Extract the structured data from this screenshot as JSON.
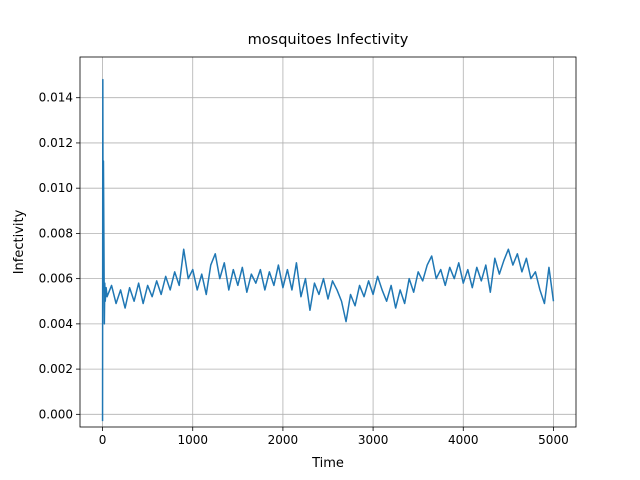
{
  "chart_data": {
    "type": "line",
    "title": "mosquitoes Infectivity",
    "x_label": "Time",
    "y_label": "Infectivity",
    "x": [
      0,
      3,
      6,
      10,
      15,
      20,
      25,
      30,
      40,
      50,
      100,
      150,
      200,
      250,
      300,
      350,
      400,
      450,
      500,
      550,
      600,
      650,
      700,
      750,
      800,
      850,
      900,
      950,
      1000,
      1050,
      1100,
      1150,
      1200,
      1250,
      1300,
      1350,
      1400,
      1450,
      1500,
      1550,
      1600,
      1650,
      1700,
      1750,
      1800,
      1850,
      1900,
      1950,
      2000,
      2050,
      2100,
      2150,
      2200,
      2250,
      2300,
      2350,
      2400,
      2450,
      2500,
      2550,
      2600,
      2650,
      2700,
      2750,
      2800,
      2850,
      2900,
      2950,
      3000,
      3050,
      3100,
      3150,
      3200,
      3250,
      3300,
      3350,
      3400,
      3450,
      3500,
      3550,
      3600,
      3650,
      3700,
      3750,
      3800,
      3850,
      3900,
      3950,
      4000,
      4050,
      4100,
      4150,
      4200,
      4250,
      4300,
      4350,
      4400,
      4450,
      4500,
      4550,
      4600,
      4650,
      4700,
      4750,
      4800,
      4850,
      4900,
      4950,
      5000
    ],
    "series": [
      {
        "name": "Infectivity",
        "color": "#1f77b4",
        "values": [
          -0.0003,
          0.0148,
          0.0065,
          0.0112,
          0.0078,
          0.004,
          0.0058,
          0.005,
          0.0056,
          0.0052,
          0.0057,
          0.0049,
          0.0055,
          0.0047,
          0.0056,
          0.005,
          0.0058,
          0.0049,
          0.0057,
          0.0052,
          0.0059,
          0.0053,
          0.0061,
          0.0055,
          0.0063,
          0.0057,
          0.0073,
          0.006,
          0.0064,
          0.0055,
          0.0062,
          0.0053,
          0.0066,
          0.0071,
          0.006,
          0.0067,
          0.0055,
          0.0064,
          0.0057,
          0.0065,
          0.0054,
          0.0062,
          0.0058,
          0.0064,
          0.0055,
          0.0063,
          0.0057,
          0.0066,
          0.0056,
          0.0064,
          0.0055,
          0.0067,
          0.0052,
          0.006,
          0.0046,
          0.0058,
          0.0053,
          0.006,
          0.0051,
          0.0059,
          0.0055,
          0.005,
          0.0041,
          0.0053,
          0.0048,
          0.0057,
          0.0052,
          0.0059,
          0.0053,
          0.0061,
          0.0055,
          0.005,
          0.0057,
          0.0047,
          0.0055,
          0.0049,
          0.006,
          0.0054,
          0.0063,
          0.0059,
          0.0066,
          0.007,
          0.006,
          0.0064,
          0.0057,
          0.0065,
          0.006,
          0.0067,
          0.0058,
          0.0064,
          0.0056,
          0.0065,
          0.0059,
          0.0066,
          0.0054,
          0.0069,
          0.0062,
          0.0068,
          0.0073,
          0.0066,
          0.0071,
          0.0063,
          0.0069,
          0.006,
          0.0063,
          0.0055,
          0.0049,
          0.0065,
          0.005
        ]
      }
    ],
    "xlim": [
      -250,
      5250
    ],
    "ylim": [
      -0.00056,
      0.0158
    ],
    "xticks": [
      0,
      1000,
      2000,
      3000,
      4000,
      5000
    ],
    "yticks": [
      {
        "value": 0,
        "label": "0.000"
      },
      {
        "value": 0.002,
        "label": "0.002"
      },
      {
        "value": 0.004,
        "label": "0.004"
      },
      {
        "value": 0.006,
        "label": "0.006"
      },
      {
        "value": 0.008,
        "label": "0.008"
      },
      {
        "value": 0.01,
        "label": "0.010"
      },
      {
        "value": 0.012,
        "label": "0.012"
      },
      {
        "value": 0.014,
        "label": "0.014"
      }
    ],
    "grid": true
  }
}
